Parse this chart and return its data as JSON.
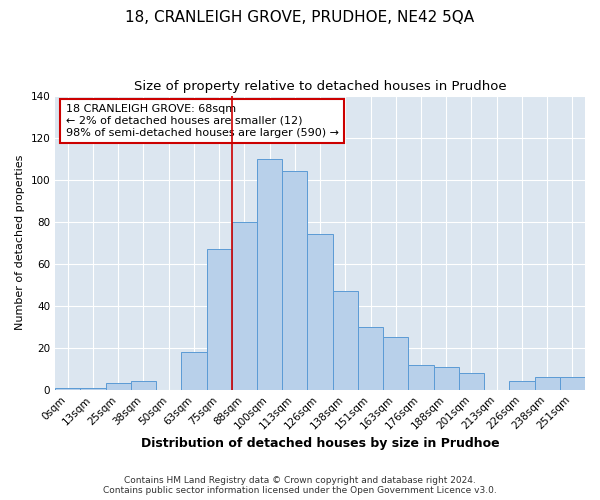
{
  "title": "18, CRANLEIGH GROVE, PRUDHOE, NE42 5QA",
  "subtitle": "Size of property relative to detached houses in Prudhoe",
  "xlabel": "Distribution of detached houses by size in Prudhoe",
  "ylabel": "Number of detached properties",
  "bin_labels": [
    "0sqm",
    "13sqm",
    "25sqm",
    "38sqm",
    "50sqm",
    "63sqm",
    "75sqm",
    "88sqm",
    "100sqm",
    "113sqm",
    "126sqm",
    "138sqm",
    "151sqm",
    "163sqm",
    "176sqm",
    "188sqm",
    "201sqm",
    "213sqm",
    "226sqm",
    "238sqm",
    "251sqm"
  ],
  "bar_heights": [
    1,
    1,
    3,
    4,
    0,
    18,
    67,
    80,
    110,
    104,
    74,
    47,
    30,
    25,
    12,
    11,
    8,
    0,
    4,
    6,
    6
  ],
  "bar_color": "#b8d0ea",
  "bar_edge_color": "#5b9bd5",
  "vline_x": 6.5,
  "vline_color": "#cc0000",
  "annotation_text": "18 CRANLEIGH GROVE: 68sqm\n← 2% of detached houses are smaller (12)\n98% of semi-detached houses are larger (590) →",
  "annotation_box_color": "#ffffff",
  "annotation_box_edge": "#cc0000",
  "ylim": [
    0,
    140
  ],
  "yticks": [
    0,
    20,
    40,
    60,
    80,
    100,
    120,
    140
  ],
  "figure_bg": "#ffffff",
  "plot_bg_color": "#dce6f0",
  "footer_line1": "Contains HM Land Registry data © Crown copyright and database right 2024.",
  "footer_line2": "Contains public sector information licensed under the Open Government Licence v3.0.",
  "title_fontsize": 11,
  "subtitle_fontsize": 9.5,
  "xlabel_fontsize": 9,
  "ylabel_fontsize": 8,
  "tick_fontsize": 7.5,
  "footer_fontsize": 6.5
}
